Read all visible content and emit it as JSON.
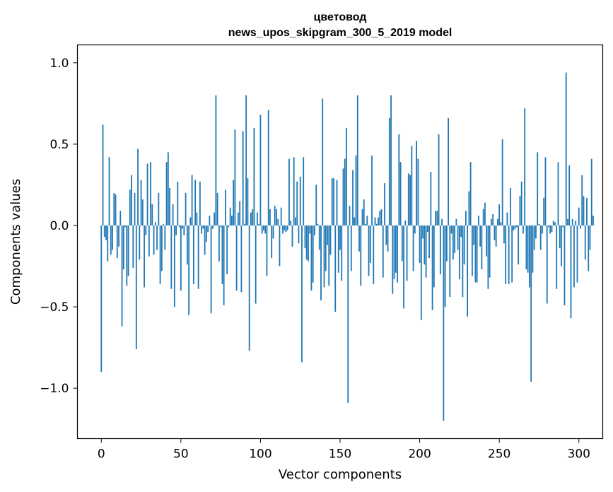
{
  "chart_data": {
    "type": "bar",
    "title_line1": "цветовод",
    "title_line2": "news_upos_skipgram_300_5_2019 model",
    "xlabel": "Vector components",
    "ylabel": "Components values",
    "xlim": [
      -15,
      315
    ],
    "ylim": [
      -1.31,
      1.11
    ],
    "xticks": [
      0,
      50,
      100,
      150,
      200,
      250,
      300
    ],
    "xtick_labels": [
      "0",
      "50",
      "100",
      "150",
      "200",
      "250",
      "300"
    ],
    "yticks": [
      1.0,
      0.5,
      0.0,
      -0.5,
      -1.0
    ],
    "ytick_labels": [
      "1.0",
      "0.5",
      "0.0",
      "−0.5",
      "−1.0"
    ],
    "bar_color": "#1f77b4",
    "grid": false,
    "values": [
      -0.9,
      0.62,
      -0.07,
      -0.09,
      -0.22,
      0.42,
      -0.18,
      -0.15,
      0.2,
      0.19,
      -0.2,
      -0.13,
      0.09,
      -0.62,
      -0.27,
      -0.01,
      -0.37,
      -0.31,
      0.22,
      0.31,
      -0.26,
      0.2,
      -0.76,
      0.47,
      -0.21,
      0.28,
      0.16,
      -0.38,
      -0.06,
      0.38,
      -0.19,
      0.39,
      0.13,
      -0.18,
      0.02,
      -0.15,
      0.2,
      -0.36,
      -0.28,
      0.01,
      -0.15,
      0.39,
      0.45,
      0.23,
      -0.39,
      0.13,
      -0.5,
      -0.06,
      0.27,
      -0.01,
      -0.4,
      -0.02,
      -0.06,
      0.2,
      -0.24,
      -0.55,
      0.05,
      0.31,
      -0.36,
      0.28,
      0.08,
      -0.39,
      0.27,
      -0.05,
      -0.02,
      -0.18,
      -0.1,
      -0.04,
      0.06,
      -0.54,
      -0.02,
      0.08,
      0.8,
      0.2,
      -0.22,
      -0.01,
      -0.36,
      -0.49,
      0.22,
      -0.3,
      -0.01,
      0.11,
      0.06,
      0.28,
      0.59,
      -0.4,
      0.08,
      0.15,
      -0.41,
      0.58,
      0.01,
      0.8,
      0.29,
      -0.77,
      0.08,
      0.1,
      0.6,
      -0.48,
      0.08,
      0.01,
      0.68,
      -0.05,
      -0.03,
      -0.05,
      -0.31,
      0.71,
      0.1,
      -0.2,
      -0.08,
      0.12,
      0.1,
      0.04,
      -0.25,
      0.11,
      -0.05,
      -0.03,
      -0.04,
      -0.03,
      0.41,
      0.03,
      -0.13,
      0.42,
      0.05,
      0.27,
      -0.11,
      0.3,
      -0.84,
      0.42,
      -0.14,
      -0.21,
      -0.22,
      -0.05,
      -0.4,
      -0.35,
      -0.06,
      0.25,
      0.01,
      -0.15,
      -0.46,
      0.78,
      -0.38,
      -0.28,
      -0.12,
      -0.37,
      -0.18,
      0.29,
      0.29,
      -0.53,
      0.28,
      -0.29,
      -0.15,
      -0.34,
      0.35,
      0.41,
      0.6,
      -1.09,
      0.12,
      -0.28,
      0.34,
      0.05,
      0.43,
      0.8,
      -0.16,
      -0.37,
      0.1,
      0.16,
      0.01,
      0.06,
      -0.31,
      -0.23,
      0.43,
      -0.36,
      0.05,
      0.01,
      0.05,
      0.09,
      0.1,
      -0.32,
      0.26,
      -0.12,
      -0.16,
      0.66,
      0.8,
      -0.42,
      -0.33,
      -0.29,
      -0.35,
      0.56,
      0.39,
      -0.22,
      -0.51,
      0.03,
      -0.34,
      0.32,
      0.31,
      0.49,
      -0.28,
      -0.05,
      0.52,
      0.41,
      -0.23,
      -0.58,
      -0.08,
      -0.24,
      -0.32,
      -0.04,
      -0.2,
      0.33,
      -0.52,
      -0.38,
      0.09,
      0.09,
      0.56,
      -0.3,
      0.04,
      -1.2,
      -0.5,
      -0.22,
      0.66,
      -0.44,
      -0.05,
      -0.21,
      -0.17,
      0.04,
      -0.15,
      -0.33,
      -0.07,
      -0.44,
      -0.24,
      0.09,
      -0.56,
      0.21,
      0.39,
      -0.31,
      -0.12,
      -0.35,
      -0.35,
      0.06,
      -0.13,
      -0.27,
      0.1,
      0.14,
      -0.19,
      -0.39,
      -0.32,
      0.04,
      0.07,
      -0.09,
      -0.13,
      0.04,
      0.13,
      0.02,
      0.53,
      -0.11,
      -0.36,
      0.08,
      -0.36,
      0.23,
      -0.35,
      -0.03,
      -0.02,
      -0.01,
      -0.24,
      0.18,
      0.27,
      -0.05,
      0.72,
      -0.27,
      -0.29,
      -0.38,
      -0.96,
      -0.29,
      -0.15,
      -0.08,
      0.45,
      0.01,
      -0.15,
      -0.05,
      0.17,
      0.42,
      -0.48,
      -0.01,
      -0.05,
      -0.04,
      0.03,
      0.02,
      -0.39,
      0.39,
      -0.14,
      -0.25,
      -0.01,
      -0.49,
      0.94,
      0.04,
      0.37,
      -0.57,
      0.04,
      -0.38,
      0.03,
      -0.35,
      0.11,
      -0.02,
      0.31,
      0.18,
      -0.21,
      0.17,
      -0.28,
      -0.15,
      0.41,
      0.06
    ]
  }
}
